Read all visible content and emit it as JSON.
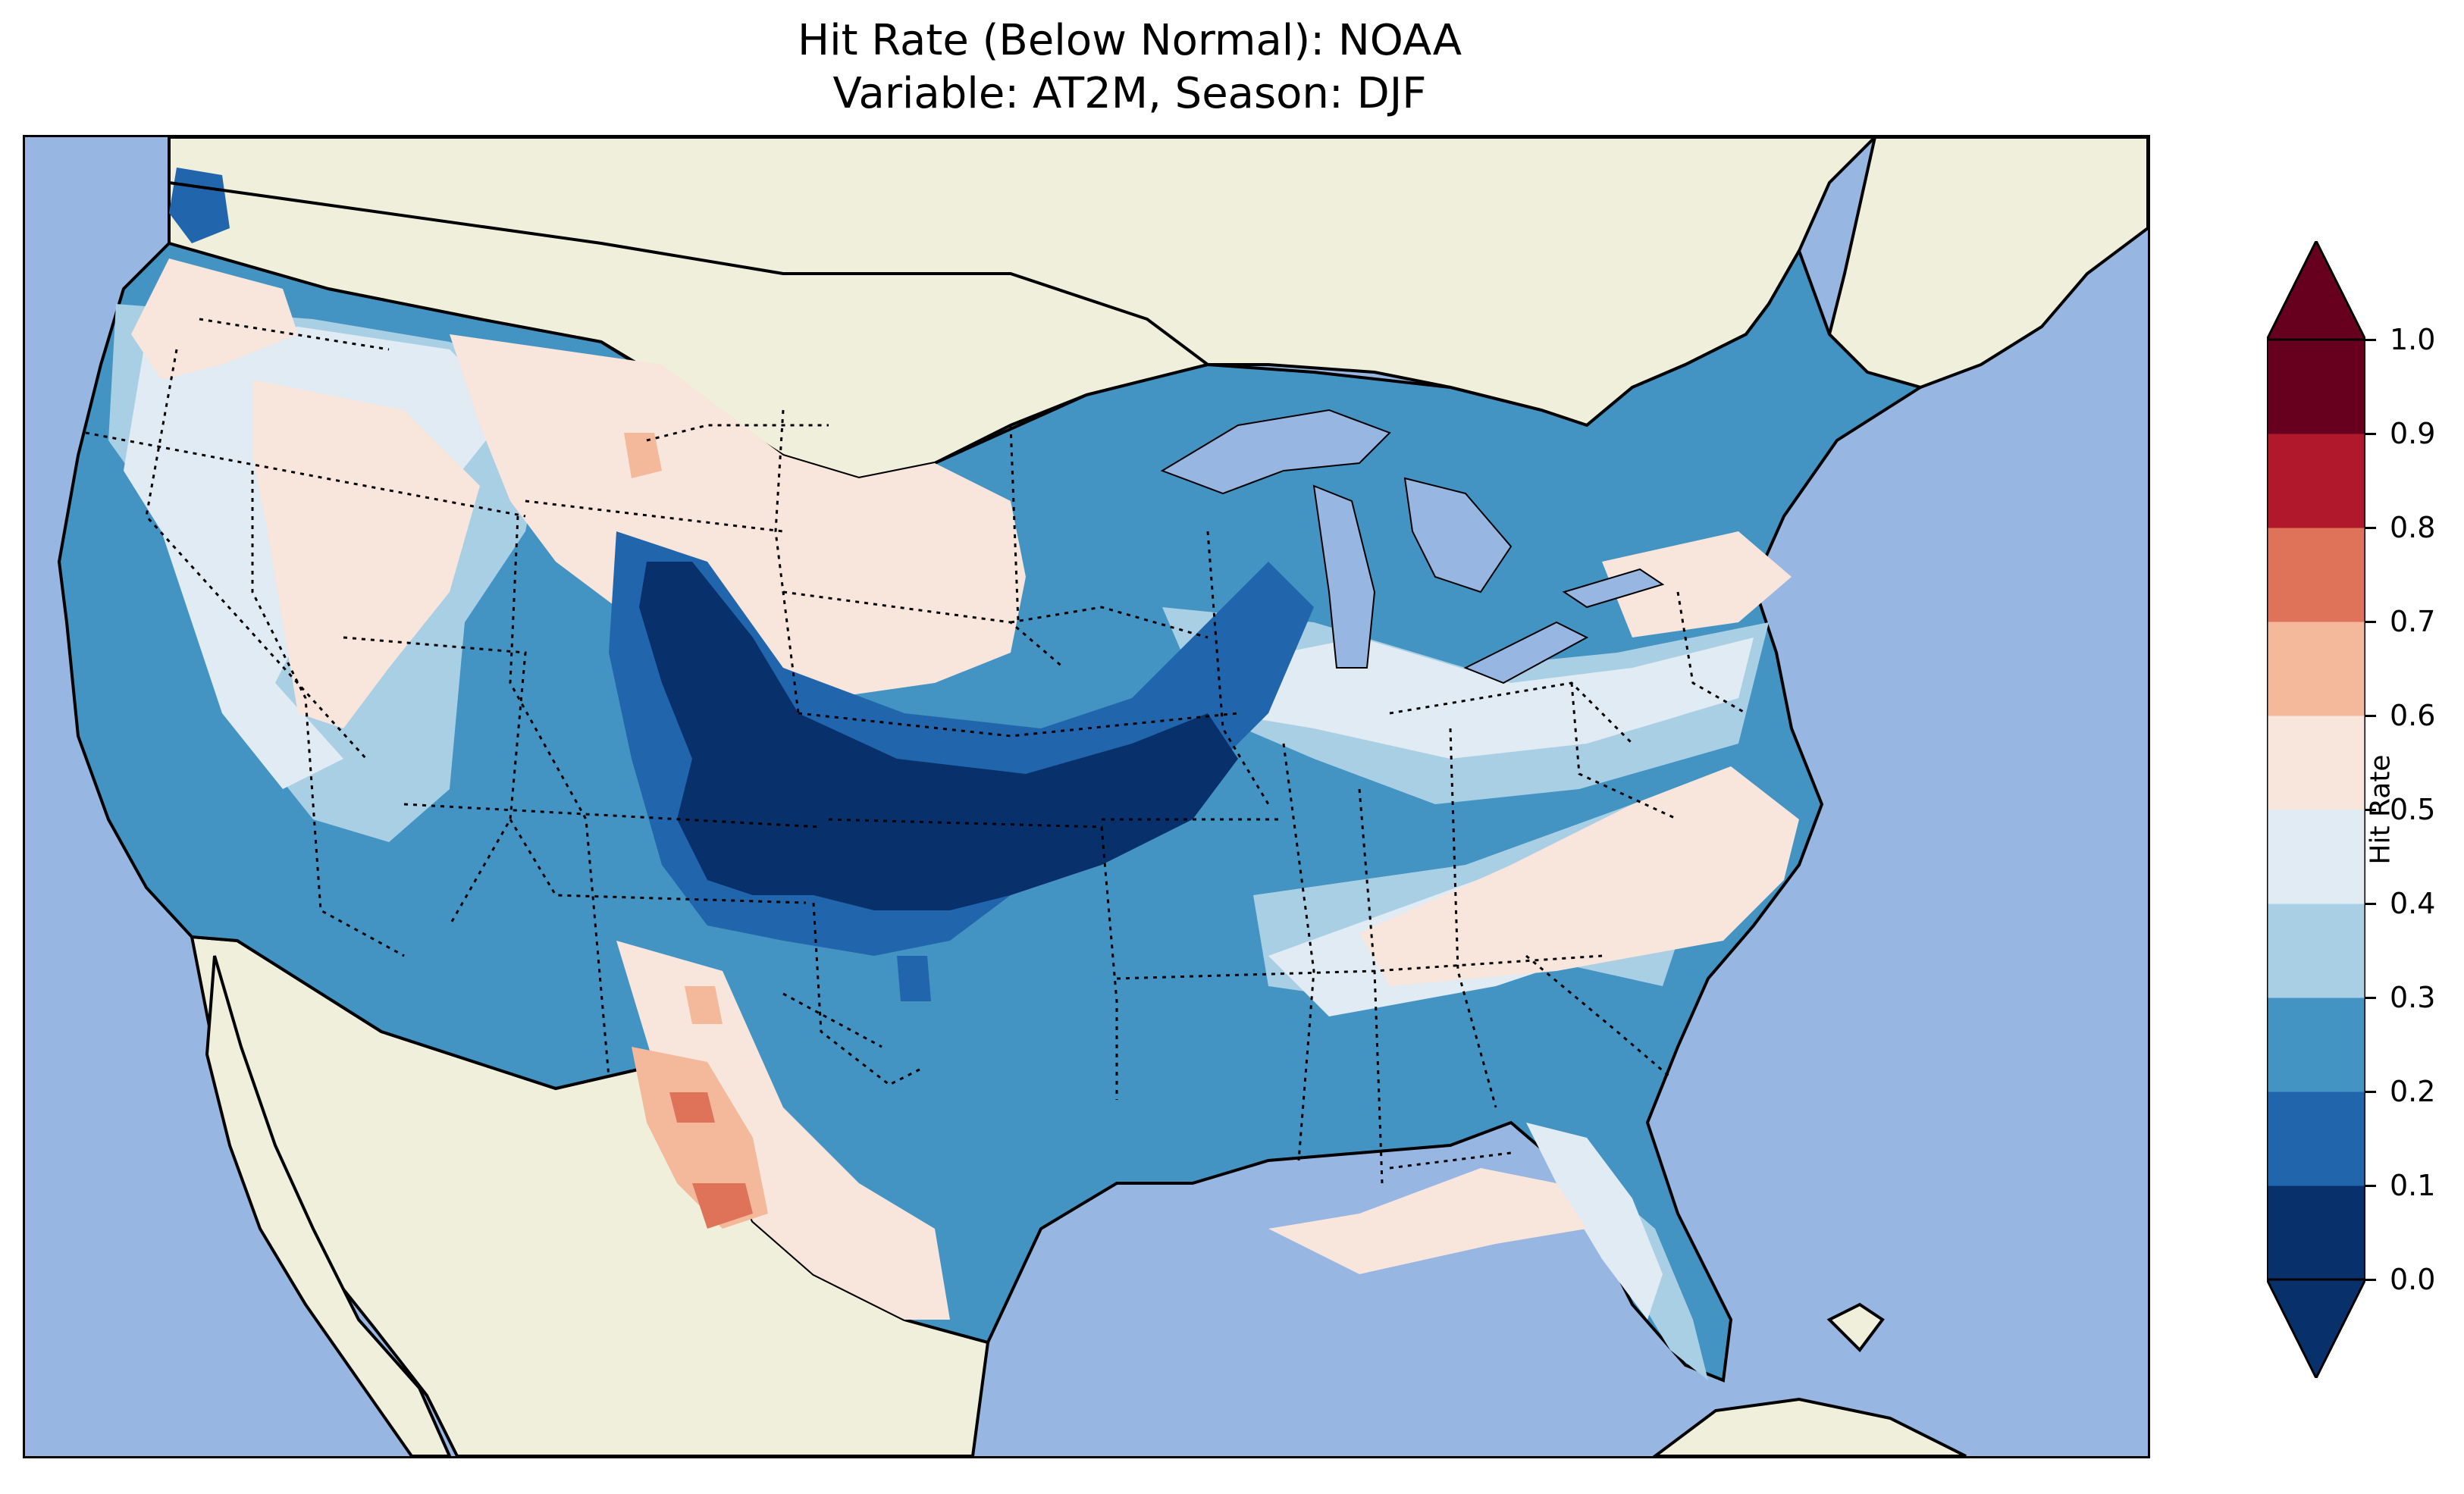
{
  "title": {
    "line1": "Hit Rate (Below Normal): NOAA",
    "line2": "Variable: AT2M, Season: DJF"
  },
  "colorbar": {
    "label": "Hit Rate",
    "ticks": [
      "0.0",
      "0.1",
      "0.2",
      "0.3",
      "0.4",
      "0.5",
      "0.6",
      "0.7",
      "0.8",
      "0.9",
      "1.0"
    ],
    "bins": [
      {
        "range": [
          0.0,
          0.1
        ],
        "color": "#08306b"
      },
      {
        "range": [
          0.1,
          0.2
        ],
        "color": "#2166ac"
      },
      {
        "range": [
          0.2,
          0.3
        ],
        "color": "#4393c3"
      },
      {
        "range": [
          0.3,
          0.4
        ],
        "color": "#a9cfe4"
      },
      {
        "range": [
          0.4,
          0.5
        ],
        "color": "#e1ebf3"
      },
      {
        "range": [
          0.5,
          0.6
        ],
        "color": "#f8e5dc"
      },
      {
        "range": [
          0.6,
          0.7
        ],
        "color": "#f4b89a"
      },
      {
        "range": [
          0.7,
          0.8
        ],
        "color": "#de735a"
      },
      {
        "range": [
          0.8,
          0.9
        ],
        "color": "#b2182b"
      },
      {
        "range": [
          0.9,
          1.0
        ],
        "color": "#67001f"
      }
    ],
    "extend": "both"
  },
  "map": {
    "ocean_color": "#97b6e1",
    "land_color": "#efefdc",
    "state_borders": "dotted",
    "coastlines": "solid"
  }
}
